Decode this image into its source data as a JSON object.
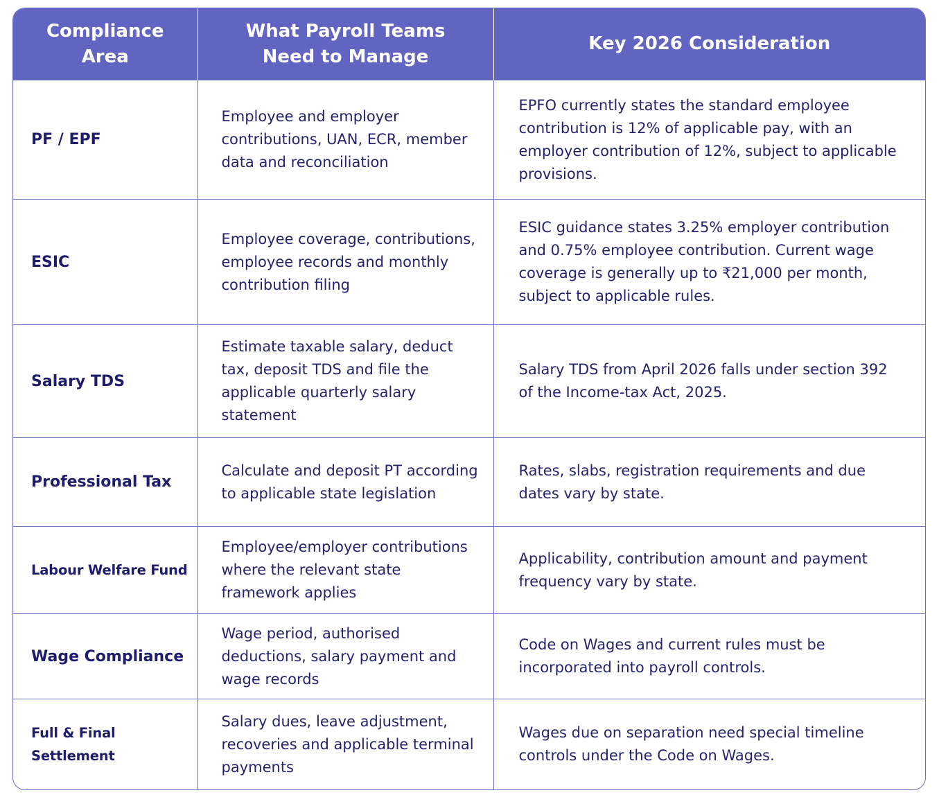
{
  "headers": {
    "area": "Compliance Area",
    "manage": "What Payroll Teams Need to Manage",
    "consider": "Key 2026 Consideration"
  },
  "rows": [
    {
      "area": "PF / EPF",
      "manage": "Employee and employer contributions, UAN, ECR, member data and reconciliation",
      "consider": "EPFO currently states the standard employee contribution is 12% of applicable pay, with an employer contribution of 12%, subject to applicable provisions."
    },
    {
      "area": "ESIC",
      "manage": "Employee coverage, contributions, employee records and monthly contribution filing",
      "consider": "ESIC guidance states 3.25% employer contribution and 0.75% employee contribution. Current wage coverage is generally up to ₹21,000 per month, subject to applicable rules."
    },
    {
      "area": "Salary TDS",
      "manage": "Estimate taxable salary, deduct tax, deposit TDS and file the applicable quarterly salary statement",
      "consider": "Salary TDS from April 2026 falls under section 392 of the Income-tax Act, 2025."
    },
    {
      "area": "Professional Tax",
      "manage": "Calculate and deposit PT according to applicable state legislation",
      "consider": "Rates, slabs, registration requirements and due dates vary by state."
    },
    {
      "area": "Labour Welfare Fund",
      "manage": "Employee/employer contributions where the relevant state framework applies",
      "consider": "Applicability, contribution amount and payment frequency vary by state."
    },
    {
      "area": "Wage Compliance",
      "manage": "Wage period, authorised deductions, salary payment and wage records",
      "consider": "Code on Wages and current rules must be incorporated into payroll controls."
    },
    {
      "area": "Full & Final Settlement",
      "manage": "Salary dues, leave adjustment, recoveries and applicable terminal payments",
      "consider": "Wages due on separation need special timeline controls under the Code on Wages."
    }
  ],
  "colors": {
    "header_bg": "#6264c2",
    "border": "#6b6fc8",
    "text": "#23236e"
  }
}
